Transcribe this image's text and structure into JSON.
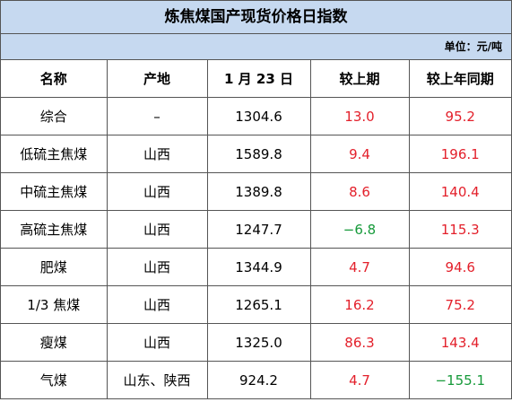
{
  "title": "炼焦煤国产现货价格日指数",
  "unit": "单位：元/吨",
  "table": {
    "header": [
      "名称",
      "产地",
      "1 月 23 日",
      "较上期",
      "较上年同期"
    ],
    "rows": [
      [
        "综合",
        "–",
        "1304.6",
        "13.0",
        "95.2"
      ],
      [
        "低硫主焦煤",
        "山西",
        "1589.8",
        "9.4",
        "196.1"
      ],
      [
        "中硫主焦煤",
        "山西",
        "1389.8",
        "8.6",
        "140.4"
      ],
      [
        "高硫主焦煤",
        "山西",
        "1247.7",
        "−6.8",
        "115.3"
      ],
      [
        "肥煤",
        "山西",
        "1344.9",
        "4.7",
        "94.6"
      ],
      [
        "1/3 焦煤",
        "山西",
        "1265.1",
        "16.2",
        "75.2"
      ],
      [
        "瘦煤",
        "山西",
        "1325.0",
        "86.3",
        "143.4"
      ],
      [
        "气煤",
        "山东、陕西",
        "924.2",
        "4.7",
        "−155.1"
      ]
    ]
  }
}
